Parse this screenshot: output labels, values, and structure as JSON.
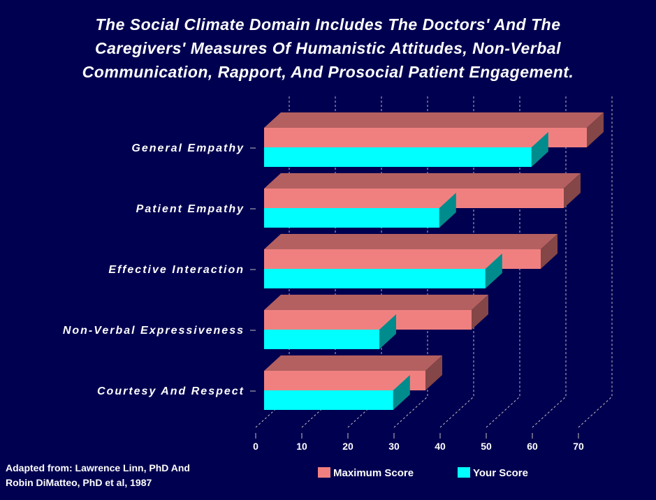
{
  "chart_data": {
    "type": "bar",
    "orientation": "horizontal-3d",
    "title_lines": [
      "The Social Climate Domain Includes The Doctors' And The",
      "Caregivers'  Measures Of Humanistic Attitudes, Non-Verbal",
      "Communication, Rapport, And Prosocial Patient Engagement."
    ],
    "categories": [
      "General Empathy",
      "Patient Empathy",
      "Effective Interaction",
      "Non-Verbal Expressiveness",
      "Courtesy And Respect"
    ],
    "series": [
      {
        "name": "Maximum Score",
        "color": "#f08080",
        "values": [
          70,
          65,
          60,
          45,
          35
        ]
      },
      {
        "name": "Your Score",
        "color": "#00ffff",
        "values": [
          58,
          38,
          48,
          25,
          28
        ]
      }
    ],
    "xticks": [
      "0",
      "10",
      "20",
      "30",
      "40",
      "50",
      "60",
      "70"
    ],
    "xlim": [
      0,
      70
    ],
    "grid": true,
    "legend_placement": "bottom"
  },
  "source": [
    "Adapted from: Lawrence Linn, PhD And",
    "Robin DiMatteo, PhD et al, 1987"
  ]
}
